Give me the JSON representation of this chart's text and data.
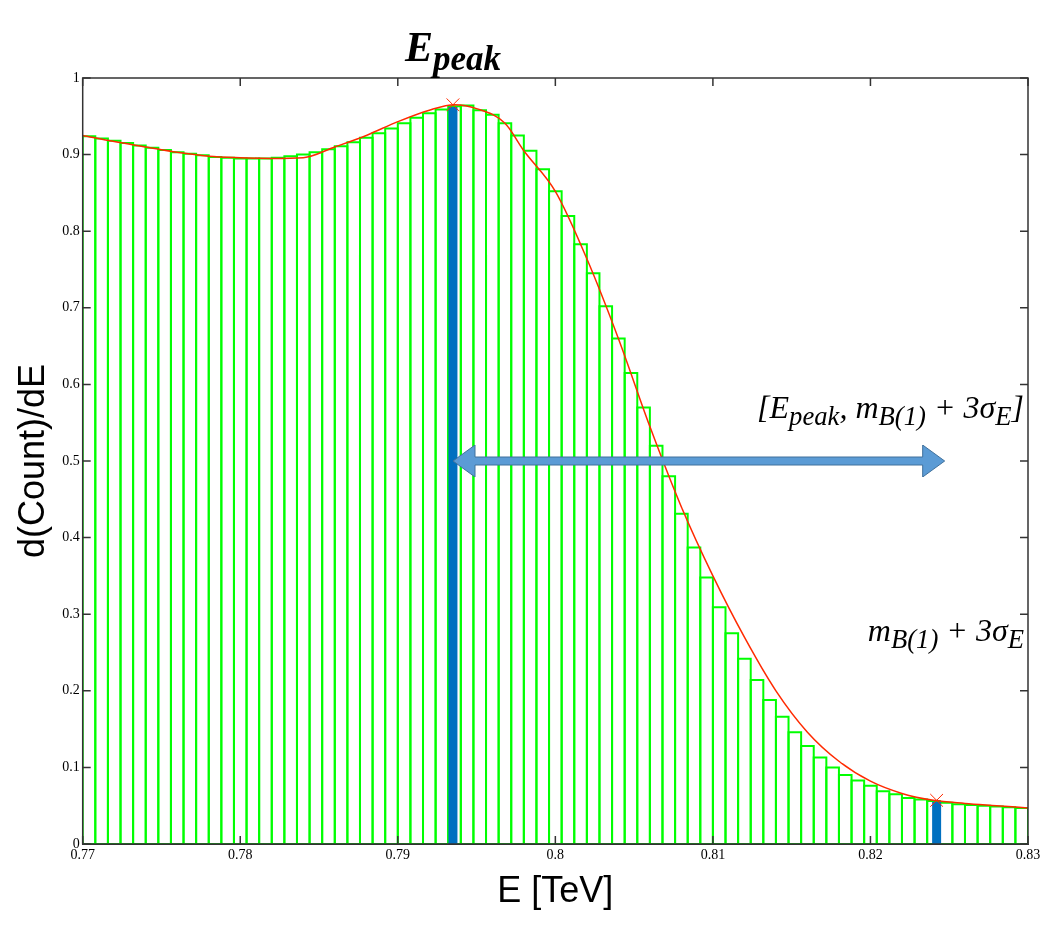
{
  "chart_data": {
    "type": "histogram",
    "xlabel": "E [TeV]",
    "ylabel": "d(Count)/dE",
    "bins": [
      0.77,
      0.7708,
      0.7716,
      0.7724,
      0.7732,
      0.774,
      0.7748,
      0.7756,
      0.7764,
      0.7772,
      0.778,
      0.7788,
      0.7796,
      0.7804,
      0.7812,
      0.782,
      0.7828,
      0.7836,
      0.7844,
      0.7852,
      0.786,
      0.7868,
      0.7876,
      0.7884,
      0.7892,
      0.79,
      0.7908,
      0.7916,
      0.7924,
      0.7932,
      0.794,
      0.7948,
      0.7956,
      0.7964,
      0.7972,
      0.798,
      0.7988,
      0.7996,
      0.8004,
      0.8012,
      0.802,
      0.8028,
      0.8036,
      0.8044,
      0.8052,
      0.806,
      0.8068,
      0.8076,
      0.8084,
      0.8092,
      0.81,
      0.8108,
      0.8116,
      0.8124,
      0.8132,
      0.814,
      0.8148,
      0.8156,
      0.8164,
      0.8172,
      0.818,
      0.8188,
      0.8196,
      0.8204,
      0.8212,
      0.822,
      0.8228,
      0.8236,
      0.8244,
      0.8252,
      0.826,
      0.8268,
      0.8276,
      0.8284,
      0.8292,
      0.83
    ],
    "series": [
      {
        "type": "histogram",
        "color": "#00ff00",
        "values": [
          0.924,
          0.921,
          0.918,
          0.915,
          0.912,
          0.909,
          0.906,
          0.903,
          0.901,
          0.899,
          0.897,
          0.896,
          0.895,
          0.895,
          0.895,
          0.896,
          0.898,
          0.9,
          0.903,
          0.907,
          0.911,
          0.916,
          0.922,
          0.928,
          0.934,
          0.941,
          0.948,
          0.954,
          0.959,
          0.963,
          0.964,
          0.958,
          0.952,
          0.941,
          0.925,
          0.905,
          0.881,
          0.852,
          0.82,
          0.783,
          0.745,
          0.702,
          0.66,
          0.615,
          0.57,
          0.52,
          0.48,
          0.431,
          0.387,
          0.348,
          0.309,
          0.275,
          0.242,
          0.214,
          0.188,
          0.166,
          0.146,
          0.128,
          0.113,
          0.1,
          0.09,
          0.083,
          0.076,
          0.069,
          0.065,
          0.06,
          0.058,
          0.056,
          0.054,
          0.052,
          0.051,
          0.05,
          0.049,
          0.048,
          0.047
        ]
      },
      {
        "type": "line",
        "color": "#ff2a00",
        "x": [
          0.77,
          0.772,
          0.774,
          0.776,
          0.778,
          0.78,
          0.782,
          0.784,
          0.786,
          0.788,
          0.79,
          0.792,
          0.7936,
          0.795,
          0.7968,
          0.798,
          0.8,
          0.802,
          0.804,
          0.806,
          0.808,
          0.81,
          0.812,
          0.814,
          0.816,
          0.818,
          0.82,
          0.822,
          0.824,
          0.826,
          0.828,
          0.83
        ],
        "values": [
          0.925,
          0.917,
          0.91,
          0.903,
          0.898,
          0.896,
          0.895,
          0.896,
          0.91,
          0.925,
          0.943,
          0.958,
          0.965,
          0.96,
          0.941,
          0.905,
          0.852,
          0.764,
          0.66,
          0.545,
          0.44,
          0.35,
          0.27,
          0.2,
          0.146,
          0.108,
          0.082,
          0.066,
          0.057,
          0.053,
          0.05,
          0.047
        ]
      },
      {
        "type": "bar",
        "color": "#0070c0",
        "x": [
          0.7935,
          0.8242
        ],
        "values": [
          0.962,
          0.055
        ]
      },
      {
        "type": "scatter",
        "marker": "cross",
        "color": "#ff2a00",
        "x": [
          0.7935,
          0.8242
        ],
        "values": [
          0.965,
          0.057
        ]
      }
    ],
    "annotations": [
      "E$_{peak}$",
      "m$_{B(1)}$ + 3σ$_{E}$",
      "[E$_{peak}$, m$_{B(1)}$ + 3σ$_{E}$]"
    ],
    "xlim": [
      0.77,
      0.83
    ],
    "xticks": [
      0.77,
      0.78,
      0.79,
      0.8,
      0.81,
      0.82,
      0.83
    ],
    "ylim": [
      0,
      1
    ],
    "yticks": [
      0,
      0.1,
      0.2,
      0.3,
      0.4,
      0.5,
      0.6,
      0.7,
      0.8,
      0.9,
      1
    ]
  }
}
